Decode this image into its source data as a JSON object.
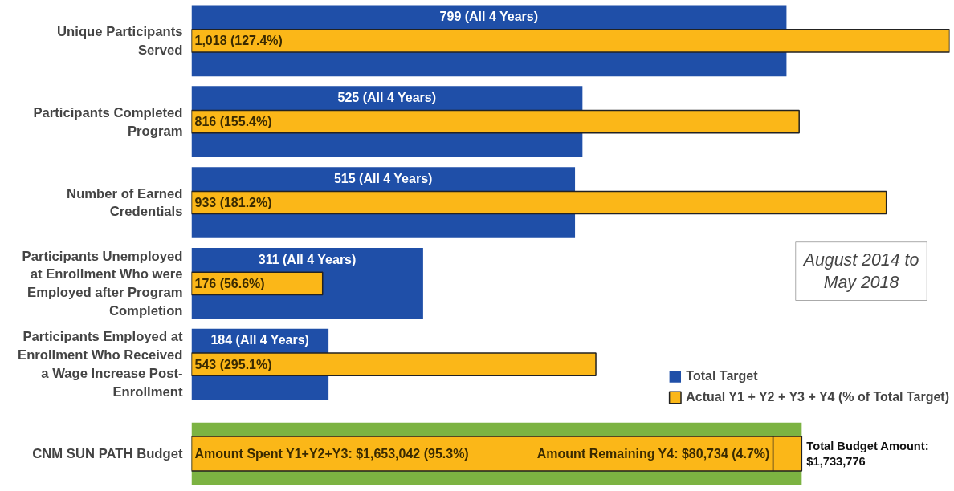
{
  "chart_data": [
    {
      "type": "bar",
      "orientation": "horizontal",
      "categories": [
        "Unique Participants Served",
        "Participants Completed Program",
        "Number of Earned Credentials",
        "Participants Unemployed at Enrollment Who were Employed after Program Completion",
        "Participants Employed at Enrollment Who Received a Wage Increase Post-Enrollment"
      ],
      "series": [
        {
          "name": "Total Target",
          "color": "#1f4fa8",
          "values": [
            799,
            525,
            515,
            311,
            184
          ],
          "value_labels": [
            "799 (All 4 Years)",
            "525 (All 4 Years)",
            "515 (All 4 Years)",
            "311 (All 4 Years)",
            "184 (All 4 Years)"
          ]
        },
        {
          "name": "Actual Y1 + Y2 + Y3 + Y4 (% of Total Target)",
          "color": "#fbb718",
          "values": [
            1018,
            816,
            933,
            176,
            543
          ],
          "value_labels": [
            "1,018 (127.4%)",
            "816 (155.4%)",
            "933 (181.2%)",
            "176 (56.6%)",
            "543 (295.1%)"
          ]
        }
      ],
      "legend": "bottom right",
      "annotations": [
        "August 2014 to May 2018"
      ]
    },
    {
      "type": "bar",
      "orientation": "horizontal",
      "stacked": true,
      "categories": [
        "CNM SUN PATH Budget"
      ],
      "bands": [
        {
          "axis": "x",
          "from": 0,
          "to": 100,
          "color": "#7cb342",
          "label": "Total Budget Amount: $1,733,776"
        }
      ],
      "series": [
        {
          "color": "#fbb718",
          "values": [
            95.3
          ],
          "value_labels": [
            "Amount Spent Y1+Y2+Y3: $1,653,042 (95.3%)"
          ]
        },
        {
          "color": "#fbb718",
          "values": [
            4.7
          ],
          "value_labels": [
            "Amount Remaining Y4: $80,734 (4.7%)"
          ]
        }
      ]
    }
  ]
}
